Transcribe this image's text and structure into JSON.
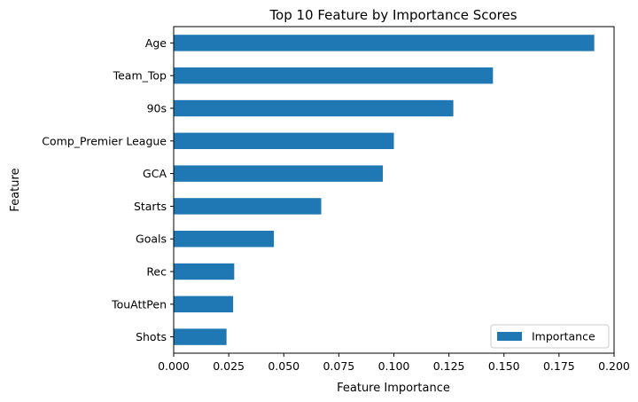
{
  "chart_data": {
    "type": "bar",
    "orientation": "horizontal",
    "title": "Top 10 Feature by Importance Scores",
    "xlabel": "Feature Importance",
    "ylabel": "Feature",
    "categories": [
      "Age",
      "Team_Top",
      "90s",
      "Comp_Premier League",
      "GCA",
      "Starts",
      "Goals",
      "Rec",
      "TouAttPen",
      "Shots"
    ],
    "series": [
      {
        "name": "Importance",
        "color": "#1f77b4",
        "values": [
          0.191,
          0.145,
          0.127,
          0.1,
          0.095,
          0.067,
          0.0455,
          0.0275,
          0.027,
          0.024
        ]
      }
    ],
    "xlim": [
      0,
      0.2
    ],
    "xticks": [
      "0.000",
      "0.025",
      "0.050",
      "0.075",
      "0.100",
      "0.125",
      "0.150",
      "0.175",
      "0.200"
    ],
    "grid": false,
    "legend": "lower-right"
  }
}
